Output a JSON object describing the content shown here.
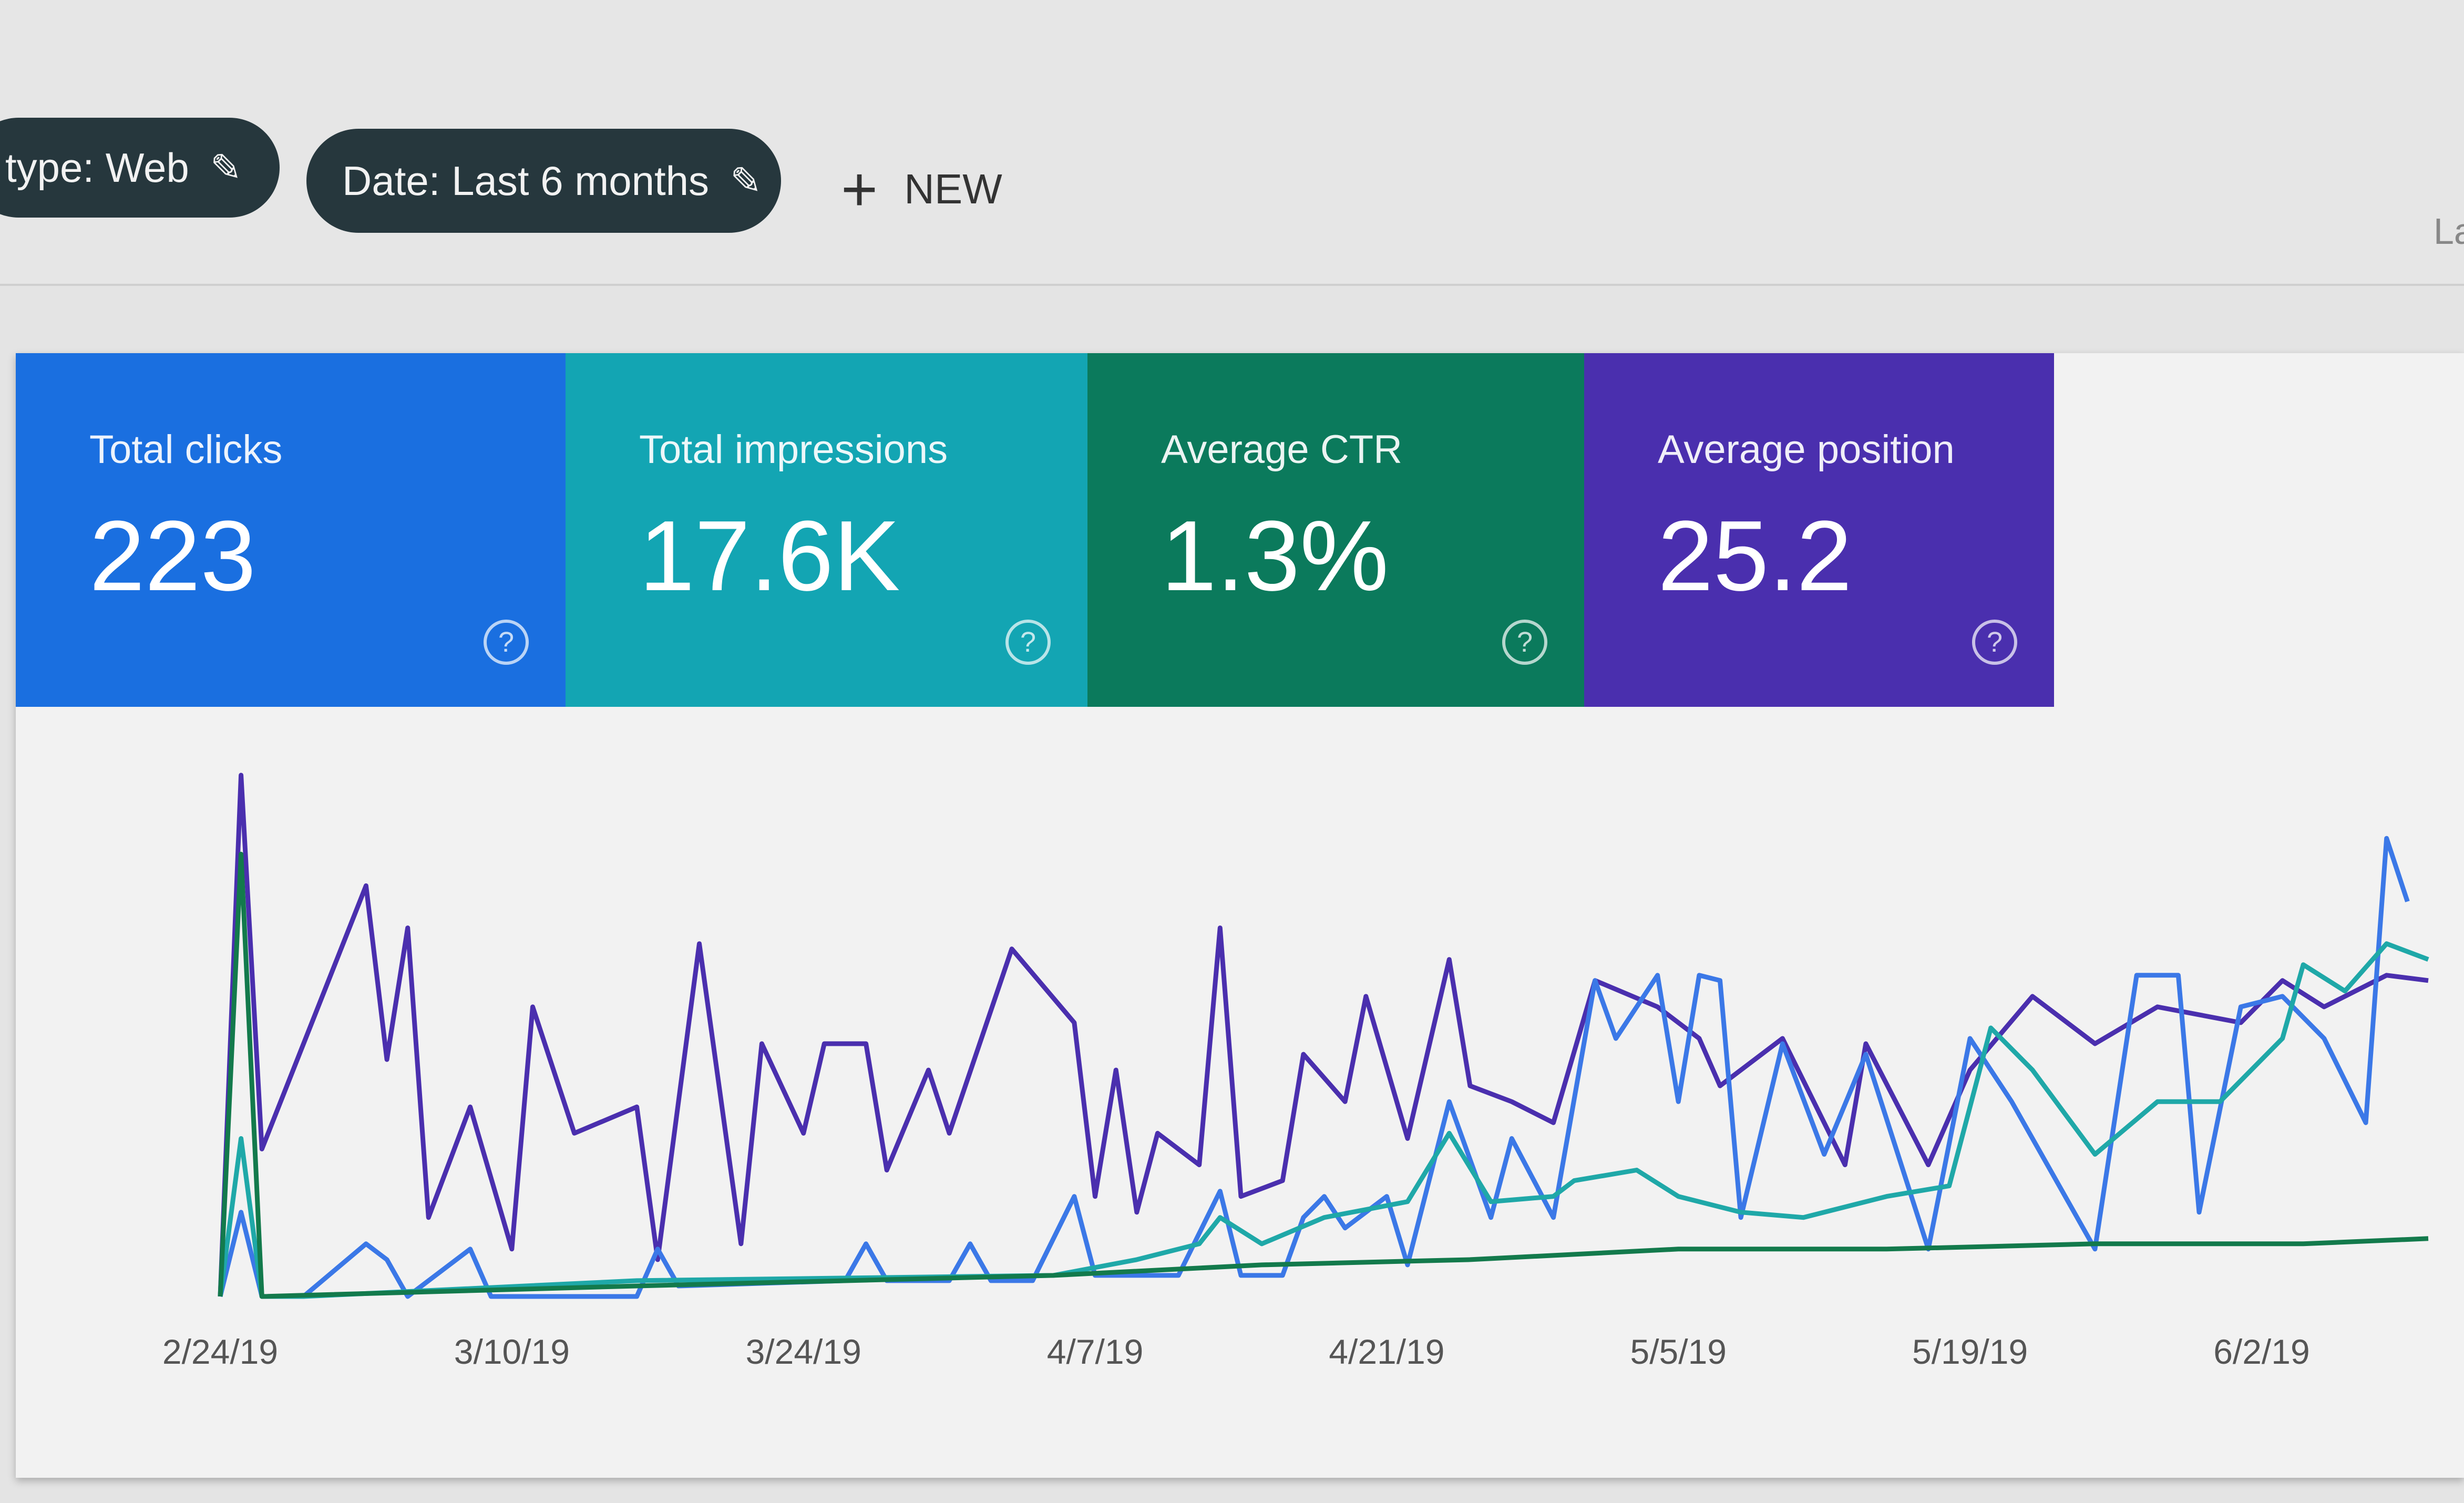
{
  "filters": {
    "type_chip": "type: Web",
    "date_chip": "Date: Last 6 months",
    "edit_icon": "pencil-icon",
    "new_label": "NEW",
    "new_icon": "plus-icon",
    "cut_off_label": "La"
  },
  "cards": [
    {
      "label": "Total clicks",
      "value": "223",
      "color": "#1a6fe0"
    },
    {
      "label": "Total impressions",
      "value": "17.6K",
      "color": "#13a5b3"
    },
    {
      "label": "Average CTR",
      "value": "1.3%",
      "color": "#0b7a5c"
    },
    {
      "label": "Average position",
      "value": "25.2",
      "color": "#4a2fae"
    }
  ],
  "help_icon": "help-circle-icon",
  "chart_data": {
    "type": "line",
    "xlim": [
      "2019-02-24",
      "2019-06-10"
    ],
    "ylim": [
      0,
      100
    ],
    "grid": false,
    "legend": "none",
    "x_tick_labels": [
      {
        "date": "2019-02-24",
        "label": "2/24/19"
      },
      {
        "date": "2019-03-10",
        "label": "3/10/19"
      },
      {
        "date": "2019-03-24",
        "label": "3/24/19"
      },
      {
        "date": "2019-04-07",
        "label": "4/7/19"
      },
      {
        "date": "2019-04-21",
        "label": "4/21/19"
      },
      {
        "date": "2019-05-05",
        "label": "5/5/19"
      },
      {
        "date": "2019-05-19",
        "label": "5/19/19"
      },
      {
        "date": "2019-06-02",
        "label": "6/2/19"
      }
    ],
    "series": [
      {
        "color": "#4a2fae",
        "points": [
          [
            "2019-02-24",
            0
          ],
          [
            "2019-02-25",
            99
          ],
          [
            "2019-02-26",
            28
          ],
          [
            "2019-03-03",
            78
          ],
          [
            "2019-03-04",
            45
          ],
          [
            "2019-03-05",
            70
          ],
          [
            "2019-03-06",
            15
          ],
          [
            "2019-03-08",
            36
          ],
          [
            "2019-03-10",
            9
          ],
          [
            "2019-03-11",
            55
          ],
          [
            "2019-03-13",
            31
          ],
          [
            "2019-03-16",
            36
          ],
          [
            "2019-03-17",
            7
          ],
          [
            "2019-03-19",
            67
          ],
          [
            "2019-03-21",
            10
          ],
          [
            "2019-03-22",
            48
          ],
          [
            "2019-03-24",
            31
          ],
          [
            "2019-03-25",
            48
          ],
          [
            "2019-03-27",
            48
          ],
          [
            "2019-03-28",
            24
          ],
          [
            "2019-03-30",
            43
          ],
          [
            "2019-03-31",
            31
          ],
          [
            "2019-04-03",
            66
          ],
          [
            "2019-04-06",
            52
          ],
          [
            "2019-04-07",
            19
          ],
          [
            "2019-04-08",
            43
          ],
          [
            "2019-04-09",
            16
          ],
          [
            "2019-04-10",
            31
          ],
          [
            "2019-04-12",
            25
          ],
          [
            "2019-04-13",
            70
          ],
          [
            "2019-04-14",
            19
          ],
          [
            "2019-04-16",
            22
          ],
          [
            "2019-04-17",
            46
          ],
          [
            "2019-04-19",
            37
          ],
          [
            "2019-04-20",
            57
          ],
          [
            "2019-04-22",
            30
          ],
          [
            "2019-04-24",
            64
          ],
          [
            "2019-04-25",
            40
          ],
          [
            "2019-04-27",
            37
          ],
          [
            "2019-04-29",
            33
          ],
          [
            "2019-05-01",
            60
          ],
          [
            "2019-05-04",
            55
          ],
          [
            "2019-05-06",
            49
          ],
          [
            "2019-05-07",
            40
          ],
          [
            "2019-05-10",
            49
          ],
          [
            "2019-05-13",
            25
          ],
          [
            "2019-05-14",
            48
          ],
          [
            "2019-05-17",
            25
          ],
          [
            "2019-05-19",
            43
          ],
          [
            "2019-05-22",
            57
          ],
          [
            "2019-05-25",
            48
          ],
          [
            "2019-05-28",
            55
          ],
          [
            "2019-06-01",
            52
          ],
          [
            "2019-06-03",
            60
          ],
          [
            "2019-06-05",
            55
          ],
          [
            "2019-06-08",
            61
          ],
          [
            "2019-06-10",
            60
          ]
        ]
      },
      {
        "color": "#3b78e7",
        "points": [
          [
            "2019-02-24",
            0
          ],
          [
            "2019-02-25",
            16
          ],
          [
            "2019-02-26",
            0
          ],
          [
            "2019-02-28",
            0
          ],
          [
            "2019-03-03",
            10
          ],
          [
            "2019-03-04",
            7
          ],
          [
            "2019-03-05",
            0
          ],
          [
            "2019-03-08",
            9
          ],
          [
            "2019-03-09",
            0
          ],
          [
            "2019-03-16",
            0
          ],
          [
            "2019-03-17",
            9
          ],
          [
            "2019-03-18",
            2
          ],
          [
            "2019-03-26",
            3
          ],
          [
            "2019-03-27",
            10
          ],
          [
            "2019-03-28",
            3
          ],
          [
            "2019-03-31",
            3
          ],
          [
            "2019-04-01",
            10
          ],
          [
            "2019-04-02",
            3
          ],
          [
            "2019-04-04",
            3
          ],
          [
            "2019-04-06",
            19
          ],
          [
            "2019-04-07",
            4
          ],
          [
            "2019-04-11",
            4
          ],
          [
            "2019-04-13",
            20
          ],
          [
            "2019-04-14",
            4
          ],
          [
            "2019-04-16",
            4
          ],
          [
            "2019-04-17",
            15
          ],
          [
            "2019-04-18",
            19
          ],
          [
            "2019-04-19",
            13
          ],
          [
            "2019-04-21",
            19
          ],
          [
            "2019-04-22",
            6
          ],
          [
            "2019-04-24",
            37
          ],
          [
            "2019-04-26",
            15
          ],
          [
            "2019-04-27",
            30
          ],
          [
            "2019-04-29",
            15
          ],
          [
            "2019-05-01",
            60
          ],
          [
            "2019-05-02",
            49
          ],
          [
            "2019-05-04",
            61
          ],
          [
            "2019-05-05",
            37
          ],
          [
            "2019-05-06",
            61
          ],
          [
            "2019-05-07",
            60
          ],
          [
            "2019-05-08",
            15
          ],
          [
            "2019-05-10",
            48
          ],
          [
            "2019-05-12",
            27
          ],
          [
            "2019-05-14",
            46
          ],
          [
            "2019-05-17",
            9
          ],
          [
            "2019-05-19",
            49
          ],
          [
            "2019-05-21",
            37
          ],
          [
            "2019-05-25",
            9
          ],
          [
            "2019-05-27",
            61
          ],
          [
            "2019-05-29",
            61
          ],
          [
            "2019-05-30",
            16
          ],
          [
            "2019-06-01",
            55
          ],
          [
            "2019-06-03",
            57
          ],
          [
            "2019-06-05",
            49
          ],
          [
            "2019-06-07",
            33
          ],
          [
            "2019-06-08",
            87
          ],
          [
            "2019-06-09",
            75
          ]
        ]
      },
      {
        "color": "#1fa8a8",
        "points": [
          [
            "2019-02-24",
            0
          ],
          [
            "2019-02-25",
            30
          ],
          [
            "2019-02-26",
            0
          ],
          [
            "2019-02-28",
            0
          ],
          [
            "2019-03-16",
            3
          ],
          [
            "2019-04-05",
            4
          ],
          [
            "2019-04-09",
            7
          ],
          [
            "2019-04-12",
            10
          ],
          [
            "2019-04-13",
            15
          ],
          [
            "2019-04-15",
            10
          ],
          [
            "2019-04-18",
            15
          ],
          [
            "2019-04-22",
            18
          ],
          [
            "2019-04-24",
            31
          ],
          [
            "2019-04-26",
            18
          ],
          [
            "2019-04-29",
            19
          ],
          [
            "2019-04-30",
            22
          ],
          [
            "2019-05-03",
            24
          ],
          [
            "2019-05-05",
            19
          ],
          [
            "2019-05-08",
            16
          ],
          [
            "2019-05-11",
            15
          ],
          [
            "2019-05-15",
            19
          ],
          [
            "2019-05-18",
            21
          ],
          [
            "2019-05-20",
            51
          ],
          [
            "2019-05-22",
            43
          ],
          [
            "2019-05-25",
            27
          ],
          [
            "2019-05-28",
            37
          ],
          [
            "2019-05-31",
            37
          ],
          [
            "2019-06-03",
            49
          ],
          [
            "2019-06-04",
            63
          ],
          [
            "2019-06-06",
            58
          ],
          [
            "2019-06-08",
            67
          ],
          [
            "2019-06-10",
            64
          ]
        ]
      },
      {
        "color": "#137a4c",
        "points": [
          [
            "2019-02-24",
            0
          ],
          [
            "2019-02-25",
            84
          ],
          [
            "2019-02-26",
            0
          ],
          [
            "2019-03-16",
            2
          ],
          [
            "2019-04-05",
            4
          ],
          [
            "2019-04-15",
            6
          ],
          [
            "2019-04-25",
            7
          ],
          [
            "2019-05-05",
            9
          ],
          [
            "2019-05-15",
            9
          ],
          [
            "2019-05-25",
            10
          ],
          [
            "2019-06-04",
            10
          ],
          [
            "2019-06-10",
            11
          ]
        ]
      }
    ]
  }
}
